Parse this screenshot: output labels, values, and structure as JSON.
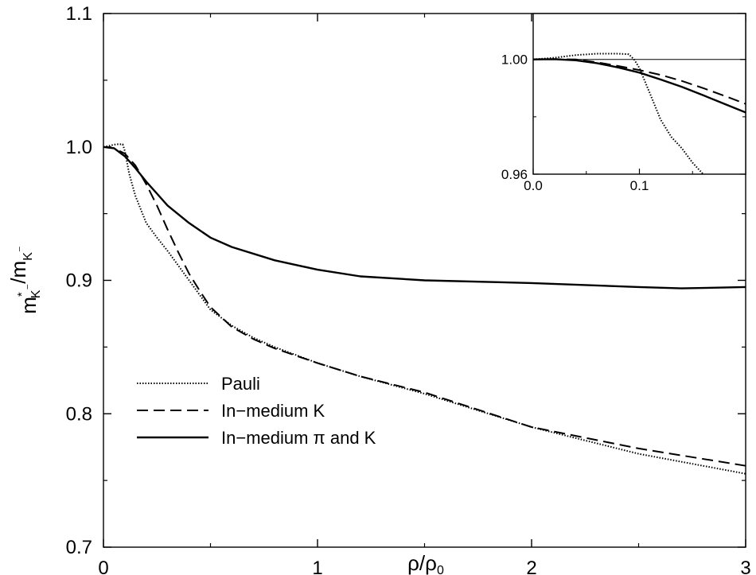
{
  "chart_data": [
    {
      "type": "line",
      "title": "",
      "xlabel": "ρ/ρ₀",
      "ylabel": "m*K⁻/mK⁻",
      "xlim": [
        0,
        3
      ],
      "ylim": [
        0.7,
        1.1
      ],
      "xticks": [
        "0",
        "1",
        "2",
        "3"
      ],
      "yticks": [
        "0.7",
        "0.8",
        "0.9",
        "1.0",
        "1.1"
      ],
      "grid": false,
      "legend_position": "bottom-left",
      "series": [
        {
          "name": "Pauli",
          "style": "dotted",
          "x": [
            0,
            0.03,
            0.06,
            0.09,
            0.1,
            0.12,
            0.15,
            0.2,
            0.25,
            0.3,
            0.4,
            0.5,
            0.6,
            0.7,
            0.8,
            1.0,
            1.2,
            1.5,
            2.0,
            2.5,
            3.0
          ],
          "y": [
            1.0,
            1.001,
            1.002,
            1.002,
            0.997,
            0.98,
            0.963,
            0.943,
            0.932,
            0.922,
            0.9,
            0.878,
            0.866,
            0.857,
            0.85,
            0.838,
            0.828,
            0.815,
            0.79,
            0.77,
            0.755
          ]
        },
        {
          "name": "In−medium K",
          "style": "dashed",
          "x": [
            0,
            0.05,
            0.1,
            0.15,
            0.2,
            0.25,
            0.3,
            0.35,
            0.4,
            0.45,
            0.5,
            0.6,
            0.7,
            0.8,
            1.0,
            1.2,
            1.5,
            2.0,
            2.5,
            3.0
          ],
          "y": [
            1.0,
            0.999,
            0.995,
            0.986,
            0.972,
            0.956,
            0.938,
            0.921,
            0.905,
            0.892,
            0.88,
            0.865,
            0.856,
            0.849,
            0.838,
            0.828,
            0.816,
            0.79,
            0.774,
            0.761
          ]
        },
        {
          "name": "In−medium π and K",
          "style": "solid",
          "x": [
            0,
            0.05,
            0.1,
            0.15,
            0.2,
            0.25,
            0.3,
            0.4,
            0.5,
            0.6,
            0.8,
            1.0,
            1.2,
            1.5,
            2.0,
            2.5,
            2.7,
            3.0
          ],
          "y": [
            1.0,
            0.999,
            0.993,
            0.984,
            0.974,
            0.965,
            0.956,
            0.943,
            0.932,
            0.925,
            0.915,
            0.908,
            0.903,
            0.9,
            0.898,
            0.895,
            0.894,
            0.895
          ]
        }
      ]
    },
    {
      "type": "line",
      "title": "",
      "xlabel": "",
      "ylabel": "",
      "xlim": [
        0,
        0.2
      ],
      "ylim": [
        0.96,
        1.016
      ],
      "xticks": [
        "0.0",
        "0.1"
      ],
      "yticks": [
        "0.96",
        "1.00"
      ],
      "reference_line_y": 1.0,
      "series": [
        {
          "style": "dotted",
          "x": [
            0,
            0.02,
            0.04,
            0.06,
            0.08,
            0.09,
            0.095,
            0.1,
            0.11,
            0.12,
            0.13,
            0.14,
            0.15,
            0.16
          ],
          "y": [
            1.0,
            1.0006,
            1.0015,
            1.002,
            1.002,
            1.0018,
            1.0,
            0.997,
            0.988,
            0.979,
            0.973,
            0.969,
            0.964,
            0.96
          ]
        },
        {
          "style": "dashed",
          "x": [
            0,
            0.02,
            0.04,
            0.06,
            0.08,
            0.1,
            0.12,
            0.14,
            0.16,
            0.18,
            0.2
          ],
          "y": [
            1.0,
            1.0001,
            1.0,
            0.999,
            0.9977,
            0.9963,
            0.9946,
            0.9925,
            0.99,
            0.9873,
            0.9845
          ]
        },
        {
          "style": "solid",
          "x": [
            0,
            0.02,
            0.04,
            0.06,
            0.08,
            0.1,
            0.12,
            0.14,
            0.16,
            0.18,
            0.2
          ],
          "y": [
            1.0,
            1.0001,
            0.9997,
            0.9987,
            0.9972,
            0.9954,
            0.993,
            0.9904,
            0.9875,
            0.9845,
            0.9815
          ]
        }
      ]
    }
  ]
}
